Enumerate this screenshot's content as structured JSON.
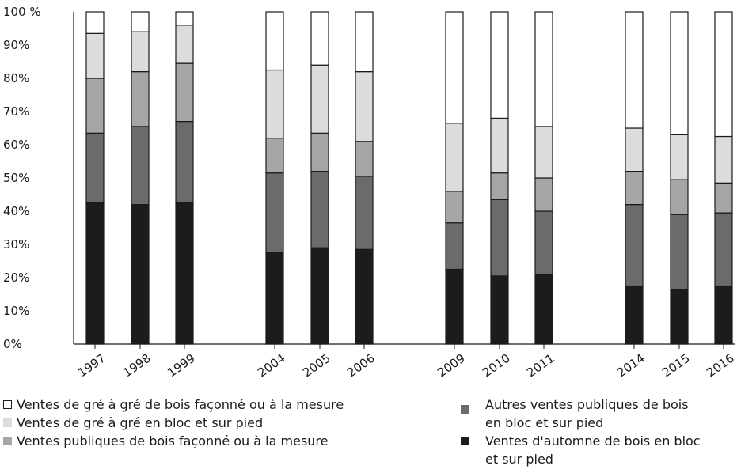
{
  "chart_data": {
    "type": "bar",
    "stacked": true,
    "categories": [
      "1997",
      "1998",
      "1999",
      "2004",
      "2005",
      "2006",
      "2009",
      "2010",
      "2011",
      "2014",
      "2015",
      "2016"
    ],
    "y_ticks": [
      "0%",
      "10%",
      "20%",
      "30%",
      "40%",
      "50%",
      "60%",
      "70%",
      "80%",
      "90%",
      "100 %"
    ],
    "ylim": [
      0,
      100
    ],
    "series": [
      {
        "name": "Ventes d'automne de bois en bloc et sur pied",
        "color": "#1c1c1c",
        "values": [
          42.5,
          42,
          42.5,
          27.5,
          29,
          28.5,
          22.5,
          20.5,
          21,
          17.5,
          16.5,
          17.5
        ]
      },
      {
        "name": "Autres ventes publiques de bois en bloc et sur pied",
        "color": "#6b6b6b",
        "values": [
          21,
          23.5,
          24.5,
          24,
          23,
          22,
          14,
          23,
          19,
          24.5,
          22.5,
          22
        ]
      },
      {
        "name": "Ventes publiques de bois façonné ou à la mesure",
        "color": "#a6a6a6",
        "values": [
          16.5,
          16.5,
          17.5,
          10.5,
          11.5,
          10.5,
          9.5,
          8,
          10,
          10,
          10.5,
          9
        ]
      },
      {
        "name": "Ventes de gré à gré en bloc et sur pied",
        "color": "#dcdcdc",
        "values": [
          13.5,
          12,
          11.5,
          20.5,
          20.5,
          21,
          20.5,
          16.5,
          15.5,
          13,
          13.5,
          14
        ]
      },
      {
        "name": "Ventes de gré à gré de bois façonné ou à la mesure",
        "color": "#ffffff",
        "values": [
          6.5,
          6,
          4,
          17.5,
          16,
          18,
          33.5,
          32,
          34.5,
          35,
          37,
          37.5
        ]
      }
    ],
    "grid": false,
    "legend_position": "bottom"
  },
  "legend": {
    "left": [
      {
        "marker": "□",
        "label": "Ventes de gré à gré de bois façonné ou à la mesure"
      },
      {
        "marker": "■",
        "label": "Ventes de gré à gré en bloc et sur pied",
        "color": "#dcdcdc"
      },
      {
        "marker": "■",
        "label": "Ventes publiques de bois façonné ou à la mesure",
        "color": "#a6a6a6"
      }
    ],
    "right": [
      {
        "marker": "■",
        "line1": "Autres ventes publiques de bois",
        "line2": "en bloc et sur pied",
        "color": "#6b6b6b"
      },
      {
        "marker": "■",
        "line1": "Ventes d'automne de bois en bloc",
        "line2": "et sur pied",
        "color": "#1c1c1c"
      }
    ]
  }
}
